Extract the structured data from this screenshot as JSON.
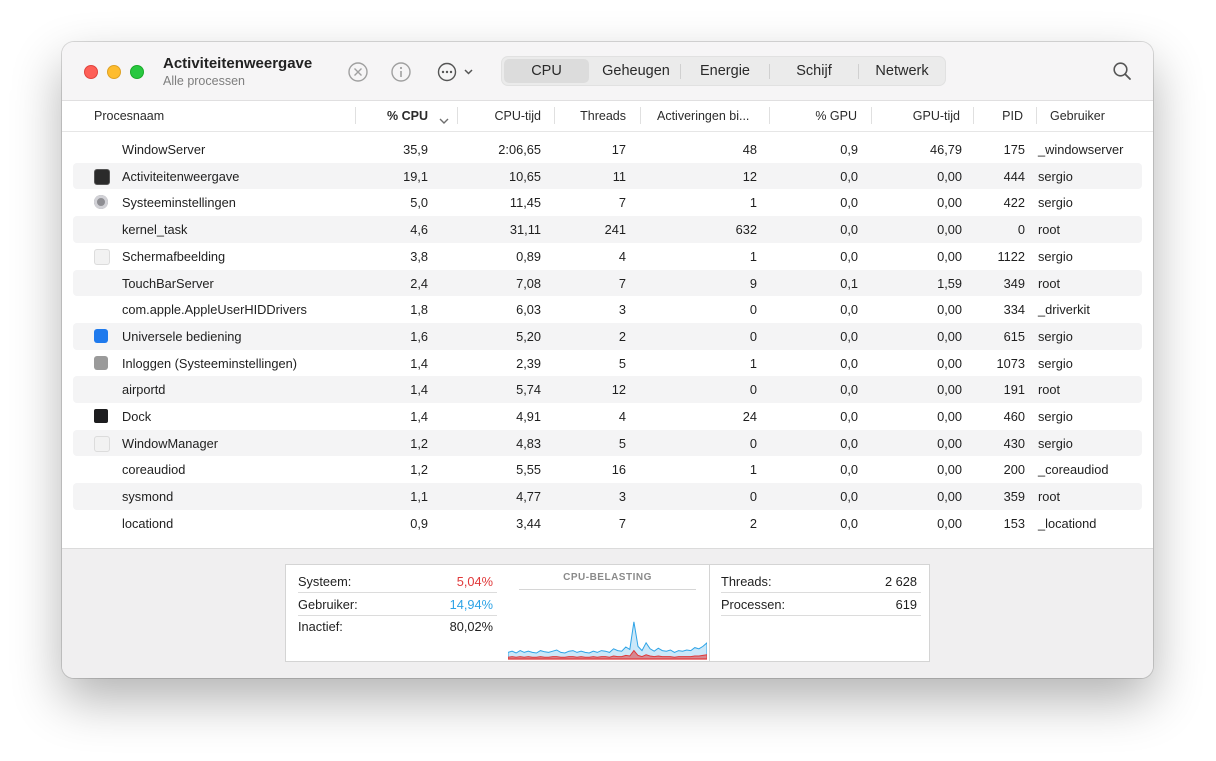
{
  "app": {
    "title": "Activiteitenweergave",
    "subtitle": "Alle processen"
  },
  "toolbar": {
    "tabs": [
      {
        "label": "CPU",
        "active": true
      },
      {
        "label": "Geheugen",
        "active": false
      },
      {
        "label": "Energie",
        "active": false
      },
      {
        "label": "Schijf",
        "active": false
      },
      {
        "label": "Netwerk",
        "active": false
      }
    ],
    "icons": [
      "stop-process-icon",
      "info-icon",
      "more-options-icon",
      "search-icon"
    ]
  },
  "table": {
    "columns": {
      "name": "Procesnaam",
      "cpu": "% CPU",
      "cputime": "CPU-tijd",
      "threads": "Threads",
      "wakeups": "Activeringen bi...",
      "gpu": "% GPU",
      "gputime": "GPU-tijd",
      "pid": "PID",
      "user": "Gebruiker"
    },
    "sort_column": "% CPU",
    "rows": [
      {
        "name": "WindowServer",
        "cpu": "35,9",
        "cputime": "2:06,65",
        "threads": "17",
        "wakeups": "48",
        "gpu": "0,9",
        "gputime": "46,79",
        "pid": "175",
        "user": "_windowserver",
        "icon": ""
      },
      {
        "name": "Activiteitenweergave",
        "cpu": "19,1",
        "cputime": "10,65",
        "threads": "11",
        "wakeups": "12",
        "gpu": "0,0",
        "gputime": "0,00",
        "pid": "444",
        "user": "sergio",
        "icon": "activity-monitor-icon"
      },
      {
        "name": "Systeeminstellingen",
        "cpu": "5,0",
        "cputime": "11,45",
        "threads": "7",
        "wakeups": "1",
        "gpu": "0,0",
        "gputime": "0,00",
        "pid": "422",
        "user": "sergio",
        "icon": "system-settings-icon"
      },
      {
        "name": "kernel_task",
        "cpu": "4,6",
        "cputime": "31,11",
        "threads": "241",
        "wakeups": "632",
        "gpu": "0,0",
        "gputime": "0,00",
        "pid": "0",
        "user": "root",
        "icon": ""
      },
      {
        "name": "Schermafbeelding",
        "cpu": "3,8",
        "cputime": "0,89",
        "threads": "4",
        "wakeups": "1",
        "gpu": "0,0",
        "gputime": "0,00",
        "pid": "1122",
        "user": "sergio",
        "icon": "generic-app-icon"
      },
      {
        "name": "TouchBarServer",
        "cpu": "2,4",
        "cputime": "7,08",
        "threads": "7",
        "wakeups": "9",
        "gpu": "0,1",
        "gputime": "1,59",
        "pid": "349",
        "user": "root",
        "icon": ""
      },
      {
        "name": "com.apple.AppleUserHIDDrivers",
        "cpu": "1,8",
        "cputime": "6,03",
        "threads": "3",
        "wakeups": "0",
        "gpu": "0,0",
        "gputime": "0,00",
        "pid": "334",
        "user": "_driverkit",
        "icon": ""
      },
      {
        "name": "Universele bediening",
        "cpu": "1,6",
        "cputime": "5,20",
        "threads": "2",
        "wakeups": "0",
        "gpu": "0,0",
        "gputime": "0,00",
        "pid": "615",
        "user": "sergio",
        "icon": "accessibility-icon"
      },
      {
        "name": "Inloggen (Systeeminstellingen)",
        "cpu": "1,4",
        "cputime": "2,39",
        "threads": "5",
        "wakeups": "1",
        "gpu": "0,0",
        "gputime": "0,00",
        "pid": "1073",
        "user": "sergio",
        "icon": "list-icon"
      },
      {
        "name": "airportd",
        "cpu": "1,4",
        "cputime": "5,74",
        "threads": "12",
        "wakeups": "0",
        "gpu": "0,0",
        "gputime": "0,00",
        "pid": "191",
        "user": "root",
        "icon": ""
      },
      {
        "name": "Dock",
        "cpu": "1,4",
        "cputime": "4,91",
        "threads": "4",
        "wakeups": "24",
        "gpu": "0,0",
        "gputime": "0,00",
        "pid": "460",
        "user": "sergio",
        "icon": "dock-icon"
      },
      {
        "name": "WindowManager",
        "cpu": "1,2",
        "cputime": "4,83",
        "threads": "5",
        "wakeups": "0",
        "gpu": "0,0",
        "gputime": "0,00",
        "pid": "430",
        "user": "sergio",
        "icon": "generic-app-icon"
      },
      {
        "name": "coreaudiod",
        "cpu": "1,2",
        "cputime": "5,55",
        "threads": "16",
        "wakeups": "1",
        "gpu": "0,0",
        "gputime": "0,00",
        "pid": "200",
        "user": "_coreaudiod",
        "icon": ""
      },
      {
        "name": "sysmond",
        "cpu": "1,1",
        "cputime": "4,77",
        "threads": "3",
        "wakeups": "0",
        "gpu": "0,0",
        "gputime": "0,00",
        "pid": "359",
        "user": "root",
        "icon": ""
      },
      {
        "name": "locationd",
        "cpu": "0,9",
        "cputime": "3,44",
        "threads": "7",
        "wakeups": "2",
        "gpu": "0,0",
        "gputime": "0,00",
        "pid": "153",
        "user": "_locationd",
        "icon": ""
      }
    ]
  },
  "summary": {
    "system_label": "Systeem:",
    "system_value": "5,04%",
    "user_label": "Gebruiker:",
    "user_value": "14,94%",
    "idle_label": "Inactief:",
    "idle_value": "80,02%",
    "graph_title": "CPU-BELASTING",
    "threads_label": "Threads:",
    "threads_value": "2 628",
    "processes_label": "Processen:",
    "processes_value": "619"
  },
  "colors": {
    "system": "#e0393a",
    "user": "#2ea3e6",
    "close": "#fe5f57",
    "minimize": "#febc2e",
    "zoom": "#28c840"
  },
  "cpu_load": {
    "user": [
      0.08,
      0.09,
      0.07,
      0.1,
      0.08,
      0.09,
      0.08,
      0.07,
      0.1,
      0.09,
      0.08,
      0.09,
      0.11,
      0.08,
      0.07,
      0.09,
      0.1,
      0.08,
      0.09,
      0.08,
      0.07,
      0.09,
      0.08,
      0.1,
      0.09,
      0.08,
      0.12,
      0.1,
      0.09,
      0.14,
      0.11,
      0.48,
      0.15,
      0.1,
      0.2,
      0.12,
      0.09,
      0.13,
      0.1,
      0.09,
      0.11,
      0.08,
      0.1,
      0.09,
      0.11,
      0.1,
      0.14,
      0.12,
      0.15,
      0.2
    ],
    "system": [
      0.03,
      0.04,
      0.03,
      0.04,
      0.03,
      0.04,
      0.03,
      0.03,
      0.04,
      0.03,
      0.03,
      0.04,
      0.04,
      0.03,
      0.03,
      0.04,
      0.04,
      0.03,
      0.04,
      0.03,
      0.03,
      0.04,
      0.03,
      0.04,
      0.04,
      0.03,
      0.05,
      0.04,
      0.04,
      0.06,
      0.05,
      0.14,
      0.06,
      0.04,
      0.07,
      0.05,
      0.04,
      0.05,
      0.04,
      0.04,
      0.04,
      0.03,
      0.04,
      0.04,
      0.04,
      0.04,
      0.05,
      0.05,
      0.06,
      0.07
    ]
  }
}
